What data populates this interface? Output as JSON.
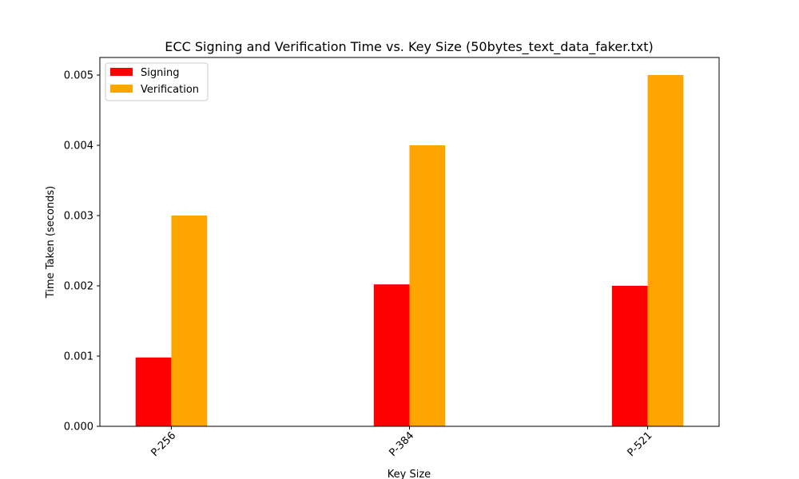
{
  "chart_data": {
    "type": "bar",
    "title": "ECC Signing and Verification Time vs. Key Size (50bytes_text_data_faker.txt)",
    "xlabel": "Key Size",
    "ylabel": "Time Taken (seconds)",
    "categories": [
      "P-256",
      "P-384",
      "P-521"
    ],
    "series": [
      {
        "name": "Signing",
        "values": [
          0.00098,
          0.00202,
          0.002
        ],
        "color": "#ff0000"
      },
      {
        "name": "Verification",
        "values": [
          0.003,
          0.004,
          0.005
        ],
        "color": "#ffa500"
      }
    ],
    "ylim": [
      0,
      0.00525
    ],
    "yticks": [
      "0.000",
      "0.001",
      "0.002",
      "0.003",
      "0.004",
      "0.005"
    ],
    "ytick_values": [
      0,
      0.001,
      0.002,
      0.003,
      0.004,
      0.005
    ],
    "grid": false,
    "legend_position": "top-left",
    "xtick_rotation_deg": 45
  }
}
